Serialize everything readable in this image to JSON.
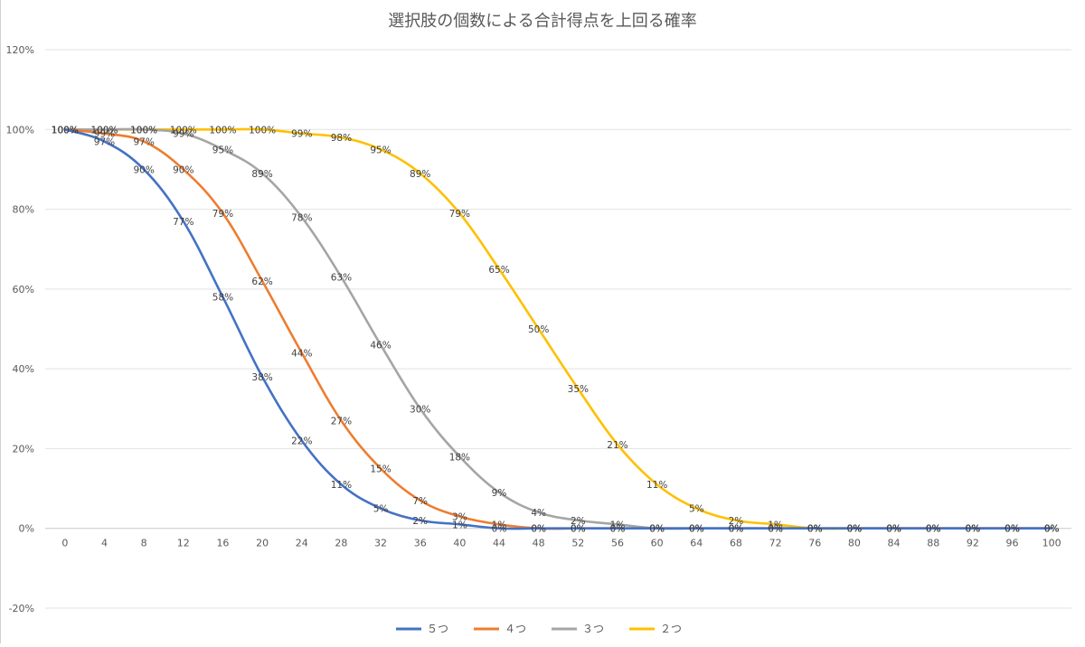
{
  "chart_data": {
    "type": "line",
    "title": "選択肢の個数による合計得点を上回る確率",
    "xlabel": "",
    "ylabel": "",
    "x": [
      0,
      4,
      8,
      12,
      16,
      20,
      24,
      28,
      32,
      36,
      40,
      44,
      48,
      52,
      56,
      60,
      64,
      68,
      72,
      76,
      80,
      84,
      88,
      92,
      96,
      100
    ],
    "ylim": [
      -20,
      120
    ],
    "yticks": [
      -20,
      0,
      20,
      40,
      60,
      80,
      100,
      120
    ],
    "ytick_format": "percent",
    "grid": true,
    "legend_position": "bottom",
    "series": [
      {
        "name": "５つ",
        "color": "#4472C4",
        "values": [
          100,
          97,
          90,
          77,
          58,
          38,
          22,
          11,
          5,
          2,
          1,
          0,
          0,
          0,
          0,
          0,
          0,
          0,
          0,
          0,
          0,
          0,
          0,
          0,
          0,
          0
        ]
      },
      {
        "name": "４つ",
        "color": "#ED7D31",
        "values": [
          100,
          99,
          97,
          90,
          79,
          62,
          44,
          27,
          15,
          7,
          3,
          1,
          0,
          0,
          0,
          0,
          0,
          0,
          0,
          0,
          0,
          0,
          0,
          0,
          0,
          0
        ]
      },
      {
        "name": "３つ",
        "color": "#A5A5A5",
        "values": [
          100,
          100,
          100,
          99,
          95,
          89,
          78,
          63,
          46,
          30,
          18,
          9,
          4,
          2,
          1,
          0,
          0,
          0,
          0,
          0,
          0,
          0,
          0,
          0,
          0,
          0
        ]
      },
      {
        "name": "２つ",
        "color": "#FFC000",
        "values": [
          100,
          100,
          100,
          100,
          100,
          100,
          99,
          98,
          95,
          89,
          79,
          65,
          50,
          35,
          21,
          11,
          5,
          2,
          1,
          0,
          0,
          0,
          0,
          0,
          0,
          0
        ]
      }
    ]
  }
}
